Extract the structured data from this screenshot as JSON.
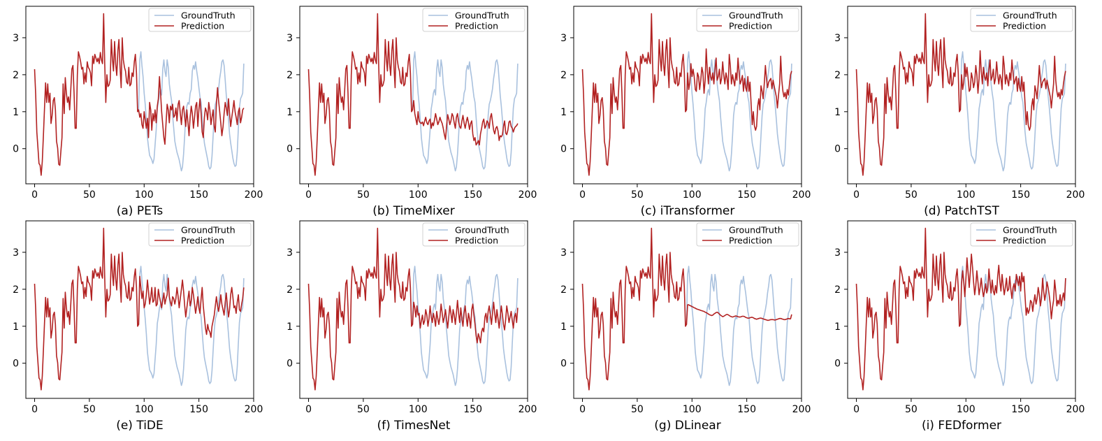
{
  "colors": {
    "ground_truth": "#a9c1de",
    "prediction": "#b22222",
    "axes": "#000000",
    "background": "#ffffff"
  },
  "chart_data": {
    "type": "line",
    "xlim": [
      -8,
      200
    ],
    "ylim": [
      -0.95,
      3.85
    ],
    "xticks": [
      0,
      50,
      100,
      150,
      200
    ],
    "yticks": [
      0,
      1,
      2,
      3
    ],
    "legend": [
      "GroundTruth",
      "Prediction"
    ],
    "legend_position": "top-right",
    "history_length": 96,
    "horizon_length": 96,
    "history_values": [
      2.15,
      1.45,
      0.45,
      0.05,
      -0.4,
      -0.45,
      -0.72,
      -0.35,
      0.35,
      1.05,
      1.78,
      1.25,
      1.75,
      1.25,
      1.5,
      0.68,
      0.9,
      1.3,
      1.38,
      1.05,
      0.2,
      0.02,
      -0.42,
      -0.45,
      -0.05,
      0.3,
      1.75,
      0.95,
      1.92,
      1.5,
      1.25,
      1.4,
      1.05,
      1.6,
      2.15,
      2.25,
      1.5,
      0.55,
      0.55,
      2.0,
      2.62,
      2.5,
      2.35,
      2.15,
      2.2,
      1.75,
      2.05,
      1.8,
      2.35,
      2.2,
      2.15,
      2.05,
      1.7,
      2.5,
      2.3,
      2.55,
      2.45,
      2.35,
      2.45,
      2.3,
      2.6,
      2.4,
      2.3,
      3.65,
      2.35,
      1.25,
      2.0,
      1.68,
      1.72,
      1.85,
      2.95,
      2.45,
      2.1,
      2.9,
      2.3,
      1.98,
      2.65,
      2.95,
      2.2,
      1.65,
      3.0,
      2.4,
      2.2,
      2.1,
      1.8,
      1.75,
      2.2,
      1.7,
      1.75,
      2.05,
      1.95,
      2.35,
      2.55,
      2.05,
      1.0,
      1.05
    ],
    "ground_truth_horizon": [
      2.4,
      2.62,
      2.25,
      1.95,
      1.5,
      1.2,
      0.8,
      0.3,
      0.05,
      -0.18,
      -0.24,
      -0.3,
      -0.4,
      -0.28,
      0.1,
      0.5,
      1.08,
      1.25,
      1.5,
      1.6,
      1.45,
      2.15,
      2.4,
      2.1,
      1.95,
      2.4,
      2.2,
      1.75,
      1.5,
      1.3,
      0.9,
      0.55,
      0.2,
      0.05,
      -0.1,
      -0.2,
      -0.3,
      -0.45,
      -0.6,
      -0.5,
      -0.15,
      0.35,
      0.9,
      1.15,
      1.25,
      1.2,
      1.5,
      1.6,
      2.1,
      2.25,
      2.15,
      2.35,
      2.1,
      1.9,
      1.65,
      1.4,
      1.25,
      0.85,
      0.45,
      0.15,
      0.0,
      -0.15,
      -0.3,
      -0.48,
      -0.55,
      -0.5,
      -0.2,
      0.35,
      0.9,
      1.2,
      1.3,
      1.45,
      1.62,
      1.9,
      2.1,
      2.35,
      2.4,
      2.25,
      1.85,
      1.45,
      1.15,
      0.78,
      0.4,
      0.15,
      -0.05,
      -0.25,
      -0.4,
      -0.48,
      -0.45,
      -0.1,
      0.55,
      1.1,
      1.35,
      1.42,
      1.5,
      2.3
    ],
    "panels": [
      {
        "caption": "(a) PETs",
        "prediction_horizon": [
          0.85,
          0.95,
          0.65,
          0.55,
          1.0,
          0.78,
          0.55,
          0.82,
          0.3,
          1.25,
          1.05,
          0.5,
          0.95,
          0.75,
          1.05,
          0.7,
          1.15,
          1.35,
          1.95,
          1.5,
          1.0,
          0.65,
          0.3,
          0.12,
          0.68,
          1.2,
          1.05,
          0.7,
          1.15,
          1.05,
          1.2,
          0.85,
          0.9,
          1.1,
          0.75,
          1.2,
          1.3,
          0.95,
          0.65,
          1.05,
          1.15,
          0.85,
          0.6,
          1.05,
          0.7,
          0.35,
          0.85,
          1.15,
          0.95,
          0.55,
          0.85,
          1.15,
          1.25,
          0.6,
          1.05,
          1.35,
          0.95,
          0.45,
          0.3,
          0.85,
          1.1,
          1.0,
          0.78,
          1.25,
          1.05,
          0.65,
          0.85,
          1.05,
          0.6,
          0.45,
          1.2,
          1.65,
          1.3,
          1.0,
          0.68,
          0.35,
          0.58,
          0.95,
          1.25,
          1.1,
          0.9,
          1.35,
          0.95,
          0.6,
          0.85,
          1.05,
          1.3,
          1.0,
          0.85,
          0.65,
          1.0,
          1.1,
          0.7,
          0.85,
          1.05,
          1.1
        ]
      },
      {
        "caption": "(b) TimeMixer",
        "prediction_horizon": [
          1.3,
          0.95,
          0.8,
          0.65,
          1.0,
          0.75,
          0.7,
          0.68,
          0.72,
          0.62,
          0.75,
          0.85,
          0.7,
          0.65,
          0.75,
          0.8,
          0.55,
          0.7,
          0.62,
          0.78,
          0.95,
          0.8,
          0.65,
          0.72,
          0.85,
          0.75,
          0.68,
          0.55,
          0.38,
          0.25,
          0.6,
          0.92,
          0.8,
          0.65,
          0.75,
          0.95,
          0.88,
          0.7,
          0.55,
          0.85,
          0.95,
          0.72,
          0.6,
          0.55,
          0.75,
          0.9,
          0.7,
          0.55,
          0.72,
          0.85,
          0.7,
          0.52,
          0.68,
          0.75,
          0.4,
          0.22,
          0.3,
          0.1,
          0.15,
          0.22,
          0.1,
          0.4,
          0.55,
          0.72,
          0.8,
          0.55,
          0.62,
          0.75,
          0.7,
          0.55,
          0.85,
          0.95,
          0.72,
          0.5,
          0.4,
          0.55,
          0.6,
          0.48,
          0.22,
          0.35,
          0.32,
          0.38,
          0.6,
          0.75,
          0.42,
          0.38,
          0.5,
          0.72,
          0.75,
          0.6,
          0.55,
          0.45,
          0.55,
          0.6,
          0.62,
          0.68
        ]
      },
      {
        "caption": "(c) iTransformer",
        "prediction_horizon": [
          2.05,
          1.6,
          1.78,
          2.3,
          1.95,
          2.15,
          1.95,
          1.6,
          1.55,
          2.05,
          1.95,
          1.6,
          1.85,
          2.2,
          2.05,
          1.5,
          1.85,
          2.7,
          2.1,
          1.75,
          2.2,
          1.95,
          1.85,
          2.05,
          1.75,
          2.15,
          2.45,
          1.85,
          1.95,
          2.15,
          1.75,
          1.9,
          2.35,
          2.0,
          1.75,
          2.05,
          1.9,
          1.6,
          2.55,
          2.25,
          1.75,
          2.0,
          1.85,
          1.7,
          2.05,
          1.85,
          2.45,
          2.05,
          1.75,
          1.85,
          1.98,
          1.55,
          1.9,
          1.65,
          1.55,
          1.95,
          1.55,
          1.8,
          1.2,
          0.65,
          1.0,
          0.62,
          0.5,
          0.6,
          1.15,
          1.35,
          1.05,
          1.7,
          1.55,
          1.35,
          1.75,
          2.25,
          1.9,
          1.65,
          1.8,
          1.85,
          1.9,
          1.62,
          1.85,
          1.7,
          1.55,
          1.4,
          1.1,
          1.45,
          1.75,
          2.5,
          1.85,
          1.55,
          1.4,
          1.52,
          1.35,
          1.6,
          1.45,
          1.75,
          2.0,
          2.1
        ]
      },
      {
        "caption": "(d) PatchTST",
        "prediction_horizon": [
          2.0,
          1.6,
          1.78,
          2.3,
          1.95,
          2.2,
          1.9,
          1.55,
          1.6,
          2.05,
          1.9,
          1.65,
          1.8,
          2.25,
          2.0,
          1.5,
          1.9,
          2.65,
          2.1,
          1.75,
          2.2,
          1.95,
          1.85,
          2.05,
          1.7,
          2.15,
          2.4,
          1.85,
          1.95,
          2.15,
          1.75,
          1.9,
          2.35,
          2.0,
          1.75,
          2.0,
          1.9,
          1.6,
          2.5,
          2.25,
          1.75,
          2.0,
          1.85,
          1.7,
          2.05,
          1.85,
          2.4,
          2.05,
          1.75,
          1.85,
          1.95,
          1.55,
          1.9,
          1.65,
          1.55,
          1.95,
          1.55,
          1.8,
          1.2,
          0.65,
          1.0,
          0.62,
          0.5,
          0.6,
          1.15,
          1.35,
          1.05,
          1.7,
          1.55,
          1.35,
          1.75,
          2.25,
          1.9,
          1.65,
          1.8,
          1.85,
          1.9,
          1.62,
          1.85,
          1.7,
          1.55,
          1.4,
          1.1,
          1.45,
          1.75,
          2.5,
          1.85,
          1.55,
          1.4,
          1.52,
          1.35,
          1.6,
          1.45,
          1.75,
          1.95,
          2.1
        ]
      },
      {
        "caption": "(e) TiDE",
        "prediction_horizon": [
          2.35,
          2.05,
          1.75,
          1.95,
          1.5,
          1.6,
          1.85,
          2.25,
          1.95,
          1.6,
          1.8,
          2.05,
          1.65,
          1.7,
          2.05,
          1.55,
          1.6,
          2.0,
          1.8,
          1.65,
          1.5,
          1.7,
          1.9,
          1.6,
          1.75,
          1.85,
          2.3,
          1.8,
          1.65,
          1.55,
          1.8,
          1.75,
          1.6,
          1.75,
          2.05,
          1.8,
          1.5,
          1.75,
          2.0,
          2.25,
          1.95,
          1.55,
          1.25,
          1.5,
          1.75,
          1.95,
          1.55,
          1.7,
          2.05,
          1.85,
          1.6,
          1.35,
          1.55,
          1.8,
          1.5,
          1.35,
          1.75,
          2.05,
          1.55,
          1.25,
          0.95,
          0.78,
          1.05,
          0.9,
          0.85,
          0.7,
          1.0,
          1.15,
          1.3,
          1.55,
          1.8,
          1.55,
          1.4,
          1.6,
          1.85,
          1.6,
          1.45,
          1.3,
          1.65,
          1.9,
          1.55,
          1.25,
          1.45,
          1.85,
          2.05,
          1.8,
          1.5,
          1.55,
          1.35,
          1.65,
          1.85,
          1.45,
          1.4,
          1.6,
          1.75,
          2.05
        ]
      },
      {
        "caption": "(f) TimesNet",
        "prediction_horizon": [
          1.65,
          1.5,
          1.25,
          1.55,
          1.3,
          1.35,
          0.95,
          1.15,
          1.3,
          1.05,
          1.15,
          1.45,
          1.3,
          1.0,
          1.2,
          1.55,
          1.25,
          1.1,
          1.35,
          1.2,
          1.0,
          1.4,
          1.2,
          1.05,
          1.25,
          1.6,
          1.35,
          1.1,
          1.25,
          1.45,
          1.2,
          0.95,
          1.25,
          1.55,
          1.35,
          1.1,
          1.45,
          1.3,
          1.05,
          1.35,
          1.7,
          1.35,
          1.1,
          1.5,
          1.2,
          1.0,
          1.35,
          1.55,
          1.25,
          1.0,
          1.35,
          1.2,
          0.95,
          1.45,
          1.6,
          1.3,
          1.05,
          0.75,
          0.55,
          0.8,
          0.7,
          0.55,
          0.85,
          0.95,
          0.85,
          1.25,
          1.35,
          1.1,
          1.4,
          1.55,
          1.3,
          1.05,
          1.35,
          1.65,
          1.35,
          1.1,
          1.45,
          1.2,
          0.95,
          1.25,
          1.55,
          1.3,
          1.05,
          0.9,
          1.2,
          1.55,
          1.35,
          1.1,
          1.25,
          1.4,
          1.15,
          0.95,
          1.25,
          1.35,
          1.1,
          1.5
        ]
      },
      {
        "caption": "(g) DLinear",
        "prediction_horizon": [
          1.58,
          1.58,
          1.56,
          1.55,
          1.53,
          1.52,
          1.5,
          1.49,
          1.47,
          1.46,
          1.45,
          1.44,
          1.43,
          1.42,
          1.41,
          1.4,
          1.38,
          1.37,
          1.35,
          1.33,
          1.31,
          1.3,
          1.29,
          1.3,
          1.33,
          1.35,
          1.37,
          1.38,
          1.36,
          1.33,
          1.3,
          1.28,
          1.26,
          1.27,
          1.29,
          1.31,
          1.32,
          1.31,
          1.29,
          1.27,
          1.26,
          1.25,
          1.26,
          1.27,
          1.28,
          1.27,
          1.26,
          1.25,
          1.25,
          1.26,
          1.27,
          1.27,
          1.26,
          1.24,
          1.23,
          1.22,
          1.22,
          1.23,
          1.24,
          1.24,
          1.23,
          1.21,
          1.2,
          1.19,
          1.2,
          1.21,
          1.22,
          1.22,
          1.21,
          1.2,
          1.19,
          1.18,
          1.17,
          1.16,
          1.16,
          1.17,
          1.18,
          1.18,
          1.18,
          1.17,
          1.17,
          1.18,
          1.19,
          1.2,
          1.21,
          1.21,
          1.2,
          1.19,
          1.18,
          1.18,
          1.19,
          1.2,
          1.21,
          1.2,
          1.2,
          1.32
        ]
      },
      {
        "caption": "(i) FEDformer",
        "prediction_horizon": [
          2.15,
          2.5,
          2.2,
          1.8,
          2.3,
          2.85,
          2.45,
          2.05,
          2.45,
          2.95,
          2.6,
          2.2,
          1.85,
          2.1,
          2.5,
          2.2,
          1.85,
          2.05,
          2.3,
          2.0,
          1.8,
          1.95,
          2.15,
          1.9,
          2.05,
          2.55,
          2.2,
          1.9,
          2.25,
          1.95,
          1.85,
          2.1,
          1.9,
          2.35,
          2.65,
          2.2,
          1.95,
          2.4,
          2.1,
          1.85,
          2.05,
          2.3,
          1.95,
          2.0,
          2.35,
          2.0,
          1.75,
          2.05,
          2.15,
          1.95,
          2.4,
          2.25,
          2.1,
          2.35,
          1.95,
          2.45,
          2.2,
          2.35,
          1.8,
          1.3,
          1.5,
          1.35,
          1.45,
          1.7,
          1.65,
          1.4,
          1.65,
          1.85,
          1.6,
          1.75,
          2.05,
          1.85,
          1.55,
          1.75,
          2.3,
          1.95,
          1.7,
          1.9,
          2.2,
          2.05,
          1.85,
          1.6,
          1.2,
          1.5,
          1.7,
          2.25,
          1.95,
          1.55,
          1.7,
          1.6,
          1.85,
          1.55,
          1.75,
          1.9,
          1.7,
          2.3
        ]
      }
    ]
  }
}
